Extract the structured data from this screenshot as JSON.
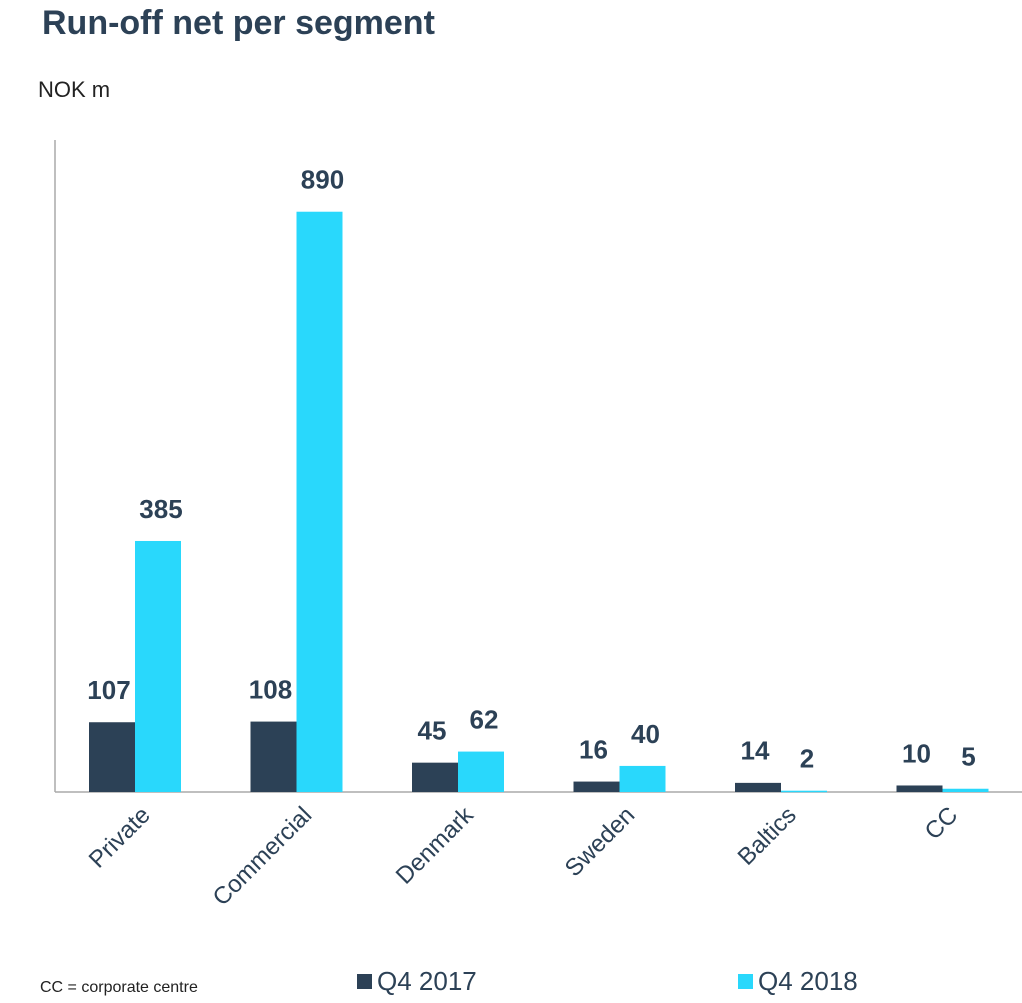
{
  "chart_data": {
    "type": "bar",
    "title": "Run-off net per segment",
    "subtitle": "NOK m",
    "note": "CC = corporate centre",
    "categories": [
      "Private",
      "Commercial",
      "Denmark",
      "Sweden",
      "Baltics",
      "CC"
    ],
    "series": [
      {
        "name": "Q4 2017",
        "color": "#2c4156",
        "values": [
          107,
          108,
          45,
          16,
          14,
          10
        ]
      },
      {
        "name": "Q4 2018",
        "color": "#29d8fc",
        "values": [
          385,
          890,
          62,
          40,
          2,
          5
        ]
      }
    ],
    "ylim": [
      0,
      1000
    ],
    "legend": "bottom"
  }
}
